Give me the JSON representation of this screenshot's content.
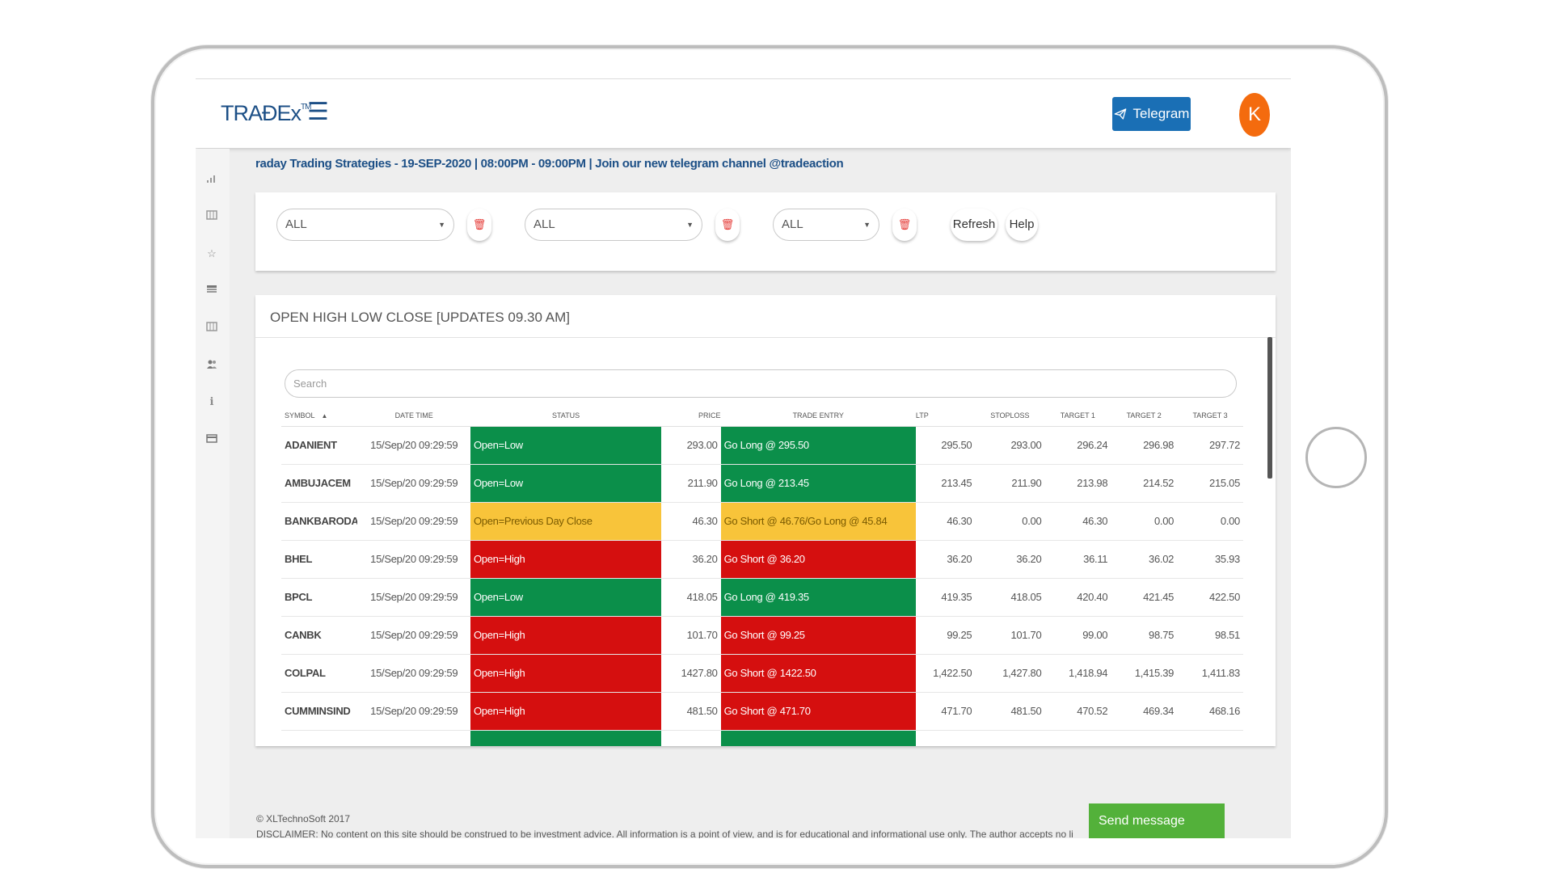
{
  "header": {
    "logo_main": "TRAĐEx",
    "logo_tm": "TM",
    "menu_icon": "hamburger-icon",
    "telegram_label": "Telegram",
    "avatar_initial": "K"
  },
  "sidebar": {
    "icons": [
      "bar-chart-icon",
      "list-icon",
      "star-icon",
      "news-icon",
      "list-icon",
      "users-icon",
      "info-icon",
      "card-icon"
    ]
  },
  "ticker": "raday Trading Strategies - 19-SEP-2020 | 08:00PM - 09:00PM | Join our new telegram channel @tradeaction",
  "filters": {
    "select1": "ALL",
    "select2": "ALL",
    "select3": "ALL",
    "refresh_label": "Refresh",
    "help_label": "Help"
  },
  "table_card": {
    "title": "OPEN HIGH LOW CLOSE [UPDATES 09.30 AM]",
    "search_placeholder": "Search",
    "columns": [
      "SYMBOL",
      "DATE TIME",
      "STATUS",
      "PRICE",
      "TRADE ENTRY",
      "LTP",
      "STOPLOSS",
      "TARGET 1",
      "TARGET 2",
      "TARGET 3"
    ],
    "sort_indicator": "▲",
    "rows": [
      {
        "symbol": "ADANIENT",
        "datetime": "15/Sep/20 09:29:59",
        "status": "Open=Low",
        "price": "293.00",
        "entry": "Go Long @ 295.50",
        "ltp": "295.50",
        "stoploss": "293.00",
        "t1": "296.24",
        "t2": "296.98",
        "t3": "297.72",
        "color": "green"
      },
      {
        "symbol": "AMBUJACEM",
        "datetime": "15/Sep/20 09:29:59",
        "status": "Open=Low",
        "price": "211.90",
        "entry": "Go Long @ 213.45",
        "ltp": "213.45",
        "stoploss": "211.90",
        "t1": "213.98",
        "t2": "214.52",
        "t3": "215.05",
        "color": "green"
      },
      {
        "symbol": "BANKBARODA",
        "datetime": "15/Sep/20 09:29:59",
        "status": "Open=Previous Day Close",
        "price": "46.30",
        "entry": "Go Short @ 46.76/Go Long @ 45.84",
        "ltp": "46.30",
        "stoploss": "0.00",
        "t1": "46.30",
        "t2": "0.00",
        "t3": "0.00",
        "color": "yellow"
      },
      {
        "symbol": "BHEL",
        "datetime": "15/Sep/20 09:29:59",
        "status": "Open=High",
        "price": "36.20",
        "entry": "Go Short @ 36.20",
        "ltp": "36.20",
        "stoploss": "36.20",
        "t1": "36.11",
        "t2": "36.02",
        "t3": "35.93",
        "color": "red"
      },
      {
        "symbol": "BPCL",
        "datetime": "15/Sep/20 09:29:59",
        "status": "Open=Low",
        "price": "418.05",
        "entry": "Go Long @ 419.35",
        "ltp": "419.35",
        "stoploss": "418.05",
        "t1": "420.40",
        "t2": "421.45",
        "t3": "422.50",
        "color": "green"
      },
      {
        "symbol": "CANBK",
        "datetime": "15/Sep/20 09:29:59",
        "status": "Open=High",
        "price": "101.70",
        "entry": "Go Short @ 99.25",
        "ltp": "99.25",
        "stoploss": "101.70",
        "t1": "99.00",
        "t2": "98.75",
        "t3": "98.51",
        "color": "red"
      },
      {
        "symbol": "COLPAL",
        "datetime": "15/Sep/20 09:29:59",
        "status": "Open=High",
        "price": "1427.80",
        "entry": "Go Short @ 1422.50",
        "ltp": "1,422.50",
        "stoploss": "1,427.80",
        "t1": "1,418.94",
        "t2": "1,415.39",
        "t3": "1,411.83",
        "color": "red"
      },
      {
        "symbol": "CUMMINSIND",
        "datetime": "15/Sep/20 09:29:59",
        "status": "Open=High",
        "price": "481.50",
        "entry": "Go Short @ 471.70",
        "ltp": "471.70",
        "stoploss": "481.50",
        "t1": "470.52",
        "t2": "469.34",
        "t3": "468.16",
        "color": "red"
      }
    ]
  },
  "footer": {
    "copyright": "© XLTechnoSoft 2017",
    "disclaimer": "DISCLAIMER: No content on this site should be construed to be investment advice. All information is a point of view, and is for educational and informational use only. The author accepts no liability for any interpretation of",
    "send_message_label": "Send message"
  },
  "colors": {
    "brand": "#1c4f86",
    "telegram": "#1a6fb5",
    "avatar": "#f46b0e",
    "green": "#0b8f4a",
    "red": "#d50f0f",
    "yellow": "#f8c43a",
    "send": "#53b13a"
  }
}
